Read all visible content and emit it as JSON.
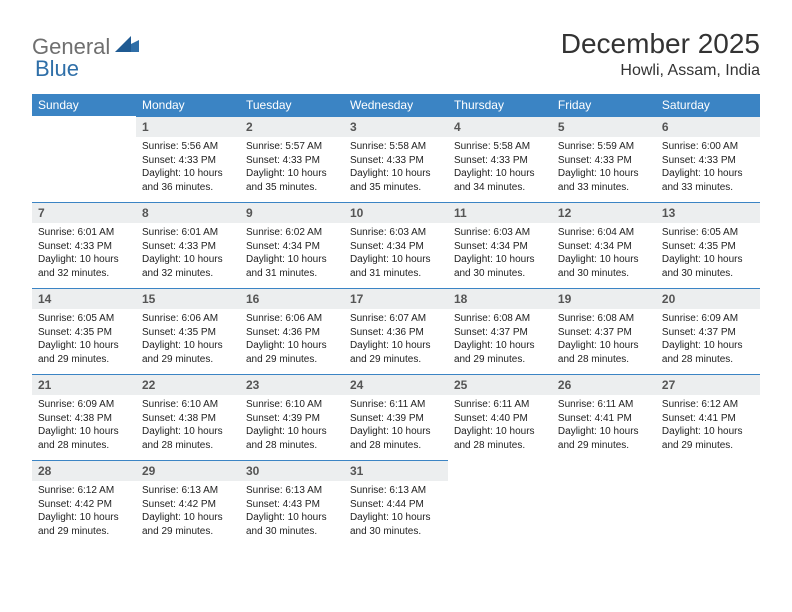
{
  "brand": {
    "part1": "General",
    "part2": "Blue"
  },
  "title": "December 2025",
  "location": "Howli, Assam, India",
  "colors": {
    "header_bg": "#3b84c4",
    "header_text": "#ffffff",
    "daynum_bg": "#eceeef",
    "daynum_text": "#555555",
    "rule": "#3b84c4",
    "body_text": "#222222",
    "logo_gray": "#6f6f6f",
    "logo_blue": "#2f6fa8"
  },
  "typography": {
    "month_fontsize": 28,
    "location_fontsize": 16,
    "dayhead_fontsize": 12,
    "daynum_fontsize": 12,
    "body_fontsize": 10
  },
  "day_headers": [
    "Sunday",
    "Monday",
    "Tuesday",
    "Wednesday",
    "Thursday",
    "Friday",
    "Saturday"
  ],
  "weeks": [
    [
      null,
      {
        "n": "1",
        "sr": "5:56 AM",
        "ss": "4:33 PM",
        "dl": "10 hours and 36 minutes."
      },
      {
        "n": "2",
        "sr": "5:57 AM",
        "ss": "4:33 PM",
        "dl": "10 hours and 35 minutes."
      },
      {
        "n": "3",
        "sr": "5:58 AM",
        "ss": "4:33 PM",
        "dl": "10 hours and 35 minutes."
      },
      {
        "n": "4",
        "sr": "5:58 AM",
        "ss": "4:33 PM",
        "dl": "10 hours and 34 minutes."
      },
      {
        "n": "5",
        "sr": "5:59 AM",
        "ss": "4:33 PM",
        "dl": "10 hours and 33 minutes."
      },
      {
        "n": "6",
        "sr": "6:00 AM",
        "ss": "4:33 PM",
        "dl": "10 hours and 33 minutes."
      }
    ],
    [
      {
        "n": "7",
        "sr": "6:01 AM",
        "ss": "4:33 PM",
        "dl": "10 hours and 32 minutes."
      },
      {
        "n": "8",
        "sr": "6:01 AM",
        "ss": "4:33 PM",
        "dl": "10 hours and 32 minutes."
      },
      {
        "n": "9",
        "sr": "6:02 AM",
        "ss": "4:34 PM",
        "dl": "10 hours and 31 minutes."
      },
      {
        "n": "10",
        "sr": "6:03 AM",
        "ss": "4:34 PM",
        "dl": "10 hours and 31 minutes."
      },
      {
        "n": "11",
        "sr": "6:03 AM",
        "ss": "4:34 PM",
        "dl": "10 hours and 30 minutes."
      },
      {
        "n": "12",
        "sr": "6:04 AM",
        "ss": "4:34 PM",
        "dl": "10 hours and 30 minutes."
      },
      {
        "n": "13",
        "sr": "6:05 AM",
        "ss": "4:35 PM",
        "dl": "10 hours and 30 minutes."
      }
    ],
    [
      {
        "n": "14",
        "sr": "6:05 AM",
        "ss": "4:35 PM",
        "dl": "10 hours and 29 minutes."
      },
      {
        "n": "15",
        "sr": "6:06 AM",
        "ss": "4:35 PM",
        "dl": "10 hours and 29 minutes."
      },
      {
        "n": "16",
        "sr": "6:06 AM",
        "ss": "4:36 PM",
        "dl": "10 hours and 29 minutes."
      },
      {
        "n": "17",
        "sr": "6:07 AM",
        "ss": "4:36 PM",
        "dl": "10 hours and 29 minutes."
      },
      {
        "n": "18",
        "sr": "6:08 AM",
        "ss": "4:37 PM",
        "dl": "10 hours and 29 minutes."
      },
      {
        "n": "19",
        "sr": "6:08 AM",
        "ss": "4:37 PM",
        "dl": "10 hours and 28 minutes."
      },
      {
        "n": "20",
        "sr": "6:09 AM",
        "ss": "4:37 PM",
        "dl": "10 hours and 28 minutes."
      }
    ],
    [
      {
        "n": "21",
        "sr": "6:09 AM",
        "ss": "4:38 PM",
        "dl": "10 hours and 28 minutes."
      },
      {
        "n": "22",
        "sr": "6:10 AM",
        "ss": "4:38 PM",
        "dl": "10 hours and 28 minutes."
      },
      {
        "n": "23",
        "sr": "6:10 AM",
        "ss": "4:39 PM",
        "dl": "10 hours and 28 minutes."
      },
      {
        "n": "24",
        "sr": "6:11 AM",
        "ss": "4:39 PM",
        "dl": "10 hours and 28 minutes."
      },
      {
        "n": "25",
        "sr": "6:11 AM",
        "ss": "4:40 PM",
        "dl": "10 hours and 28 minutes."
      },
      {
        "n": "26",
        "sr": "6:11 AM",
        "ss": "4:41 PM",
        "dl": "10 hours and 29 minutes."
      },
      {
        "n": "27",
        "sr": "6:12 AM",
        "ss": "4:41 PM",
        "dl": "10 hours and 29 minutes."
      }
    ],
    [
      {
        "n": "28",
        "sr": "6:12 AM",
        "ss": "4:42 PM",
        "dl": "10 hours and 29 minutes."
      },
      {
        "n": "29",
        "sr": "6:13 AM",
        "ss": "4:42 PM",
        "dl": "10 hours and 29 minutes."
      },
      {
        "n": "30",
        "sr": "6:13 AM",
        "ss": "4:43 PM",
        "dl": "10 hours and 30 minutes."
      },
      {
        "n": "31",
        "sr": "6:13 AM",
        "ss": "4:44 PM",
        "dl": "10 hours and 30 minutes."
      },
      null,
      null,
      null
    ]
  ],
  "labels": {
    "sunrise": "Sunrise:",
    "sunset": "Sunset:",
    "daylight": "Daylight:"
  }
}
